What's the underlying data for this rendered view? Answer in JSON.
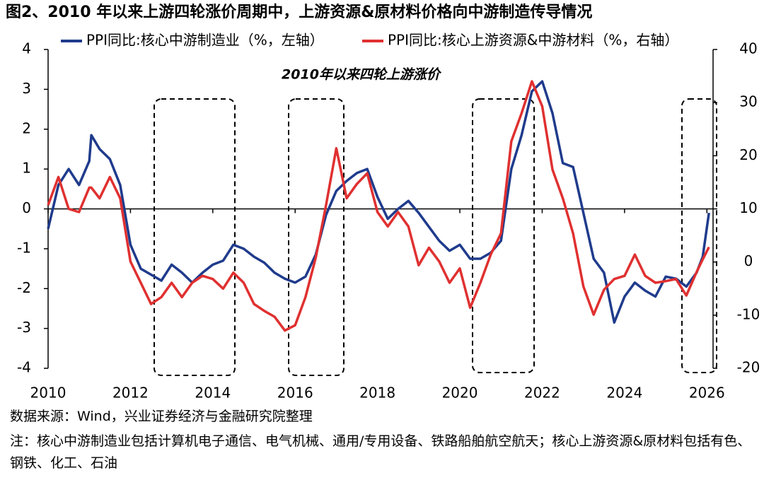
{
  "chart_data": {
    "type": "line",
    "title": "图2、2010 年以来上游四轮涨价周期中，上游资源&原材料价格向中游制造传导情况",
    "annotation": "2010年以来四轮上游涨价",
    "x": [
      2010.0,
      2010.25,
      2010.5,
      2010.75,
      2011.0,
      2011.05,
      2011.25,
      2011.5,
      2011.75,
      2012.0,
      2012.25,
      2012.5,
      2012.75,
      2013.0,
      2013.25,
      2013.5,
      2013.75,
      2014.0,
      2014.25,
      2014.5,
      2014.75,
      2015.0,
      2015.25,
      2015.5,
      2015.75,
      2016.0,
      2016.25,
      2016.5,
      2016.75,
      2017.0,
      2017.25,
      2017.5,
      2017.75,
      2018.0,
      2018.25,
      2018.5,
      2018.75,
      2019.0,
      2019.25,
      2019.5,
      2019.75,
      2020.0,
      2020.25,
      2020.5,
      2020.75,
      2021.0,
      2021.25,
      2021.5,
      2021.75,
      2022.0,
      2022.25,
      2022.5,
      2022.75,
      2023.0,
      2023.25,
      2023.5,
      2023.75,
      2024.0,
      2024.25,
      2024.5,
      2024.75,
      2025.0,
      2025.25,
      2025.5,
      2025.75,
      2025.9,
      2026.05
    ],
    "series": [
      {
        "name": "PPI同比:核心中游制造业（%，左轴）",
        "color": "#1f3b8c",
        "axis": "y",
        "values": [
          -0.5,
          0.6,
          1.0,
          0.6,
          1.2,
          1.85,
          1.5,
          1.25,
          0.6,
          -0.9,
          -1.5,
          -1.65,
          -1.8,
          -1.4,
          -1.6,
          -1.85,
          -1.6,
          -1.4,
          -1.3,
          -0.9,
          -1.0,
          -1.2,
          -1.35,
          -1.6,
          -1.75,
          -1.85,
          -1.7,
          -1.15,
          -0.15,
          0.45,
          0.7,
          0.9,
          1.0,
          0.3,
          -0.25,
          0,
          0.2,
          -0.1,
          -0.45,
          -0.8,
          -1.05,
          -0.9,
          -1.25,
          -1.25,
          -1.1,
          -0.8,
          1.0,
          1.85,
          2.95,
          3.2,
          2.4,
          1.15,
          1.05,
          -0.1,
          -1.25,
          -1.6,
          -2.85,
          -2.2,
          -1.85,
          -2.05,
          -2.2,
          -1.7,
          -1.75,
          -1.95,
          -1.6,
          -1.2,
          -0.1
        ]
      },
      {
        "name": "PPI同比:核心上游资源&中游材料（%，右轴）",
        "color": "#e03030",
        "axis": "y2",
        "values": [
          10.7,
          16,
          10,
          9.4,
          14,
          14,
          12,
          16,
          12,
          0.1,
          -3.9,
          -7.9,
          -6.6,
          -3.9,
          -6.6,
          -3.9,
          -2.6,
          -3.2,
          -5.0,
          -2.0,
          -3.9,
          -7.9,
          -9.2,
          -10.3,
          -12.9,
          -11.9,
          -6.6,
          0.8,
          10.7,
          21.4,
          12,
          14.7,
          16.7,
          9.4,
          6.7,
          9.4,
          6.7,
          -0.6,
          2.7,
          0.1,
          -3.9,
          -1.2,
          -8.6,
          -3.9,
          1.4,
          5.4,
          22.7,
          28.0,
          34,
          29.3,
          17.4,
          12,
          5.4,
          -4.6,
          -9.9,
          -5.2,
          -3.2,
          -2.6,
          1.4,
          -2.6,
          -3.9,
          -3.6,
          -3.2,
          -6.3,
          -1.9,
          0.5,
          2.8
        ]
      }
    ],
    "xlim": [
      2010,
      2026.15
    ],
    "xticks": [
      2010,
      2012,
      2014,
      2016,
      2018,
      2020,
      2022,
      2024,
      2026
    ],
    "ylim": [
      -4,
      4
    ],
    "yticks": [
      -4,
      -3,
      -2,
      -1,
      0,
      1,
      2,
      3,
      4
    ],
    "y2lim": [
      -20,
      40
    ],
    "y2ticks": [
      -20,
      -10,
      0,
      10,
      20,
      30,
      40
    ]
  },
  "footer": {
    "source": "数据来源：Wind，兴业证券经济与金融研究院整理",
    "note": "注：核心中游制造业包括计算机电子通信、电气机械、通用/专用设备、铁路船舶航空航天；核心上游资源&原材料包括有色、钢铁、化工、石油"
  }
}
